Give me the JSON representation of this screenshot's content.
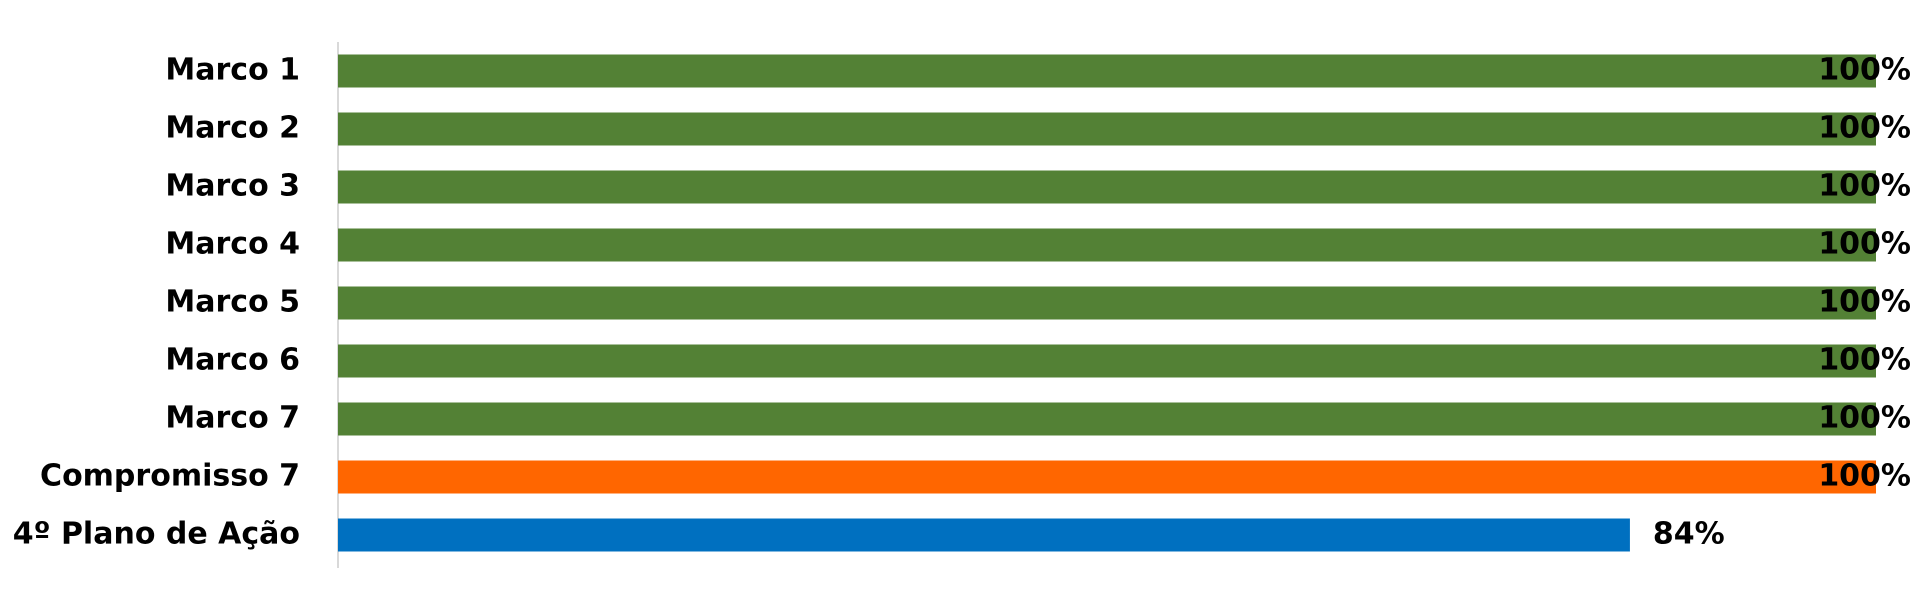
{
  "chart_data": {
    "type": "bar",
    "orientation": "horizontal",
    "categories": [
      "Marco 1",
      "Marco 2",
      "Marco 3",
      "Marco 4",
      "Marco 5",
      "Marco 6",
      "Marco 7",
      "Compromisso 7",
      "4º Plano de Ação"
    ],
    "values": [
      100,
      100,
      100,
      100,
      100,
      100,
      100,
      100,
      84
    ],
    "value_labels": [
      "100%",
      "100%",
      "100%",
      "100%",
      "100%",
      "100%",
      "100%",
      "100%",
      "84%"
    ],
    "colors": [
      "#538135",
      "#538135",
      "#538135",
      "#538135",
      "#538135",
      "#538135",
      "#538135",
      "#ff6600",
      "#0070c0"
    ],
    "xlim": [
      0,
      100
    ],
    "grid": false
  }
}
